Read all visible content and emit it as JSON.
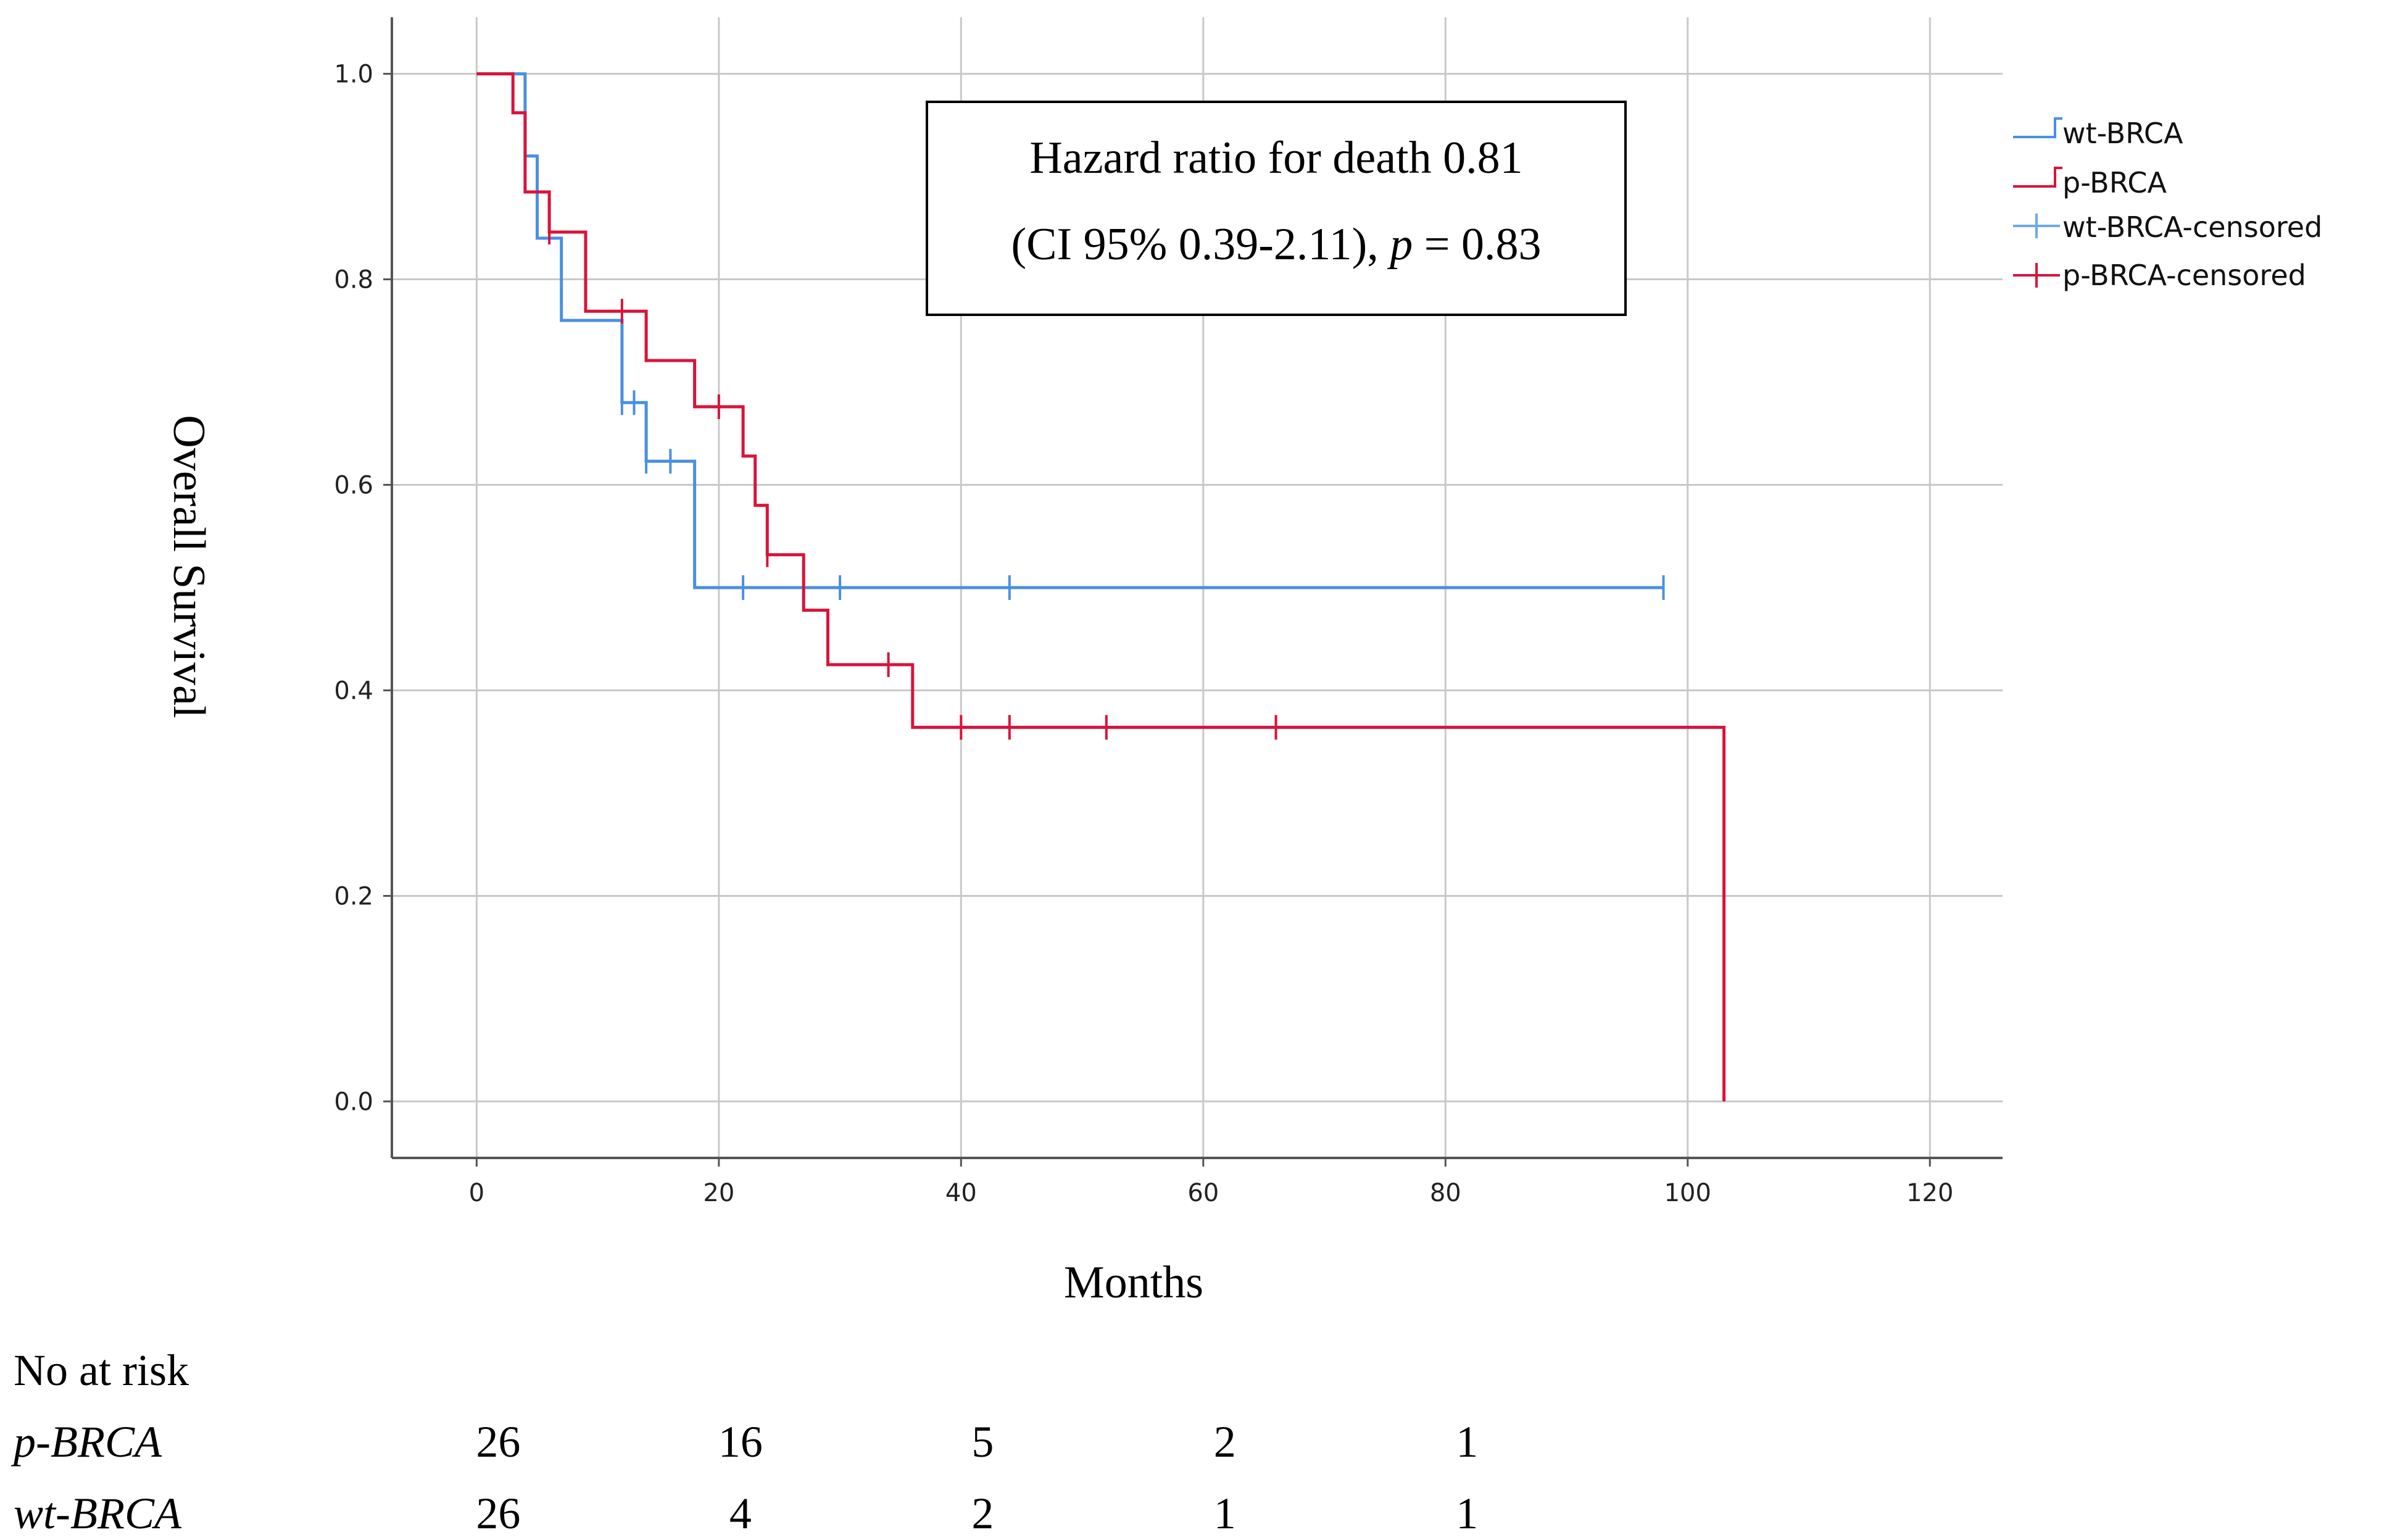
{
  "chart_data": {
    "type": "line",
    "subtype": "kaplan-meier",
    "xlabel": "Months",
    "ylabel": "Overall Survival",
    "xlim": [
      -7,
      126
    ],
    "ylim": [
      -0.055,
      1.055
    ],
    "x_ticks": [
      0,
      20,
      40,
      60,
      80,
      100,
      120
    ],
    "y_ticks": [
      0.0,
      0.2,
      0.4,
      0.6,
      0.8,
      1.0
    ],
    "x_tick_labels": [
      "0",
      "20",
      "40",
      "60",
      "80",
      "100",
      "120"
    ],
    "y_tick_labels": [
      "0.0",
      "0.2",
      "0.4",
      "0.6",
      "0.8",
      "1.0"
    ],
    "grid": true,
    "annotation": {
      "line1": "Hazard ratio for death 0.81",
      "line2_prefix": "(CI 95% 0.39-2.11), ",
      "line2_p": "p",
      "line2_suffix": " = 0.83"
    },
    "legend": {
      "position": "right",
      "entries": [
        "wt-BRCA",
        "p-BRCA",
        "wt-BRCA-censored",
        "p-BRCA-censored"
      ]
    },
    "series": [
      {
        "name": "wt-BRCA",
        "color": "#4a90e2",
        "steps": [
          [
            0,
            1.0
          ],
          [
            4,
            1.0
          ],
          [
            4,
            0.92
          ],
          [
            5,
            0.92
          ],
          [
            5,
            0.84
          ],
          [
            6,
            0.84
          ],
          [
            6,
            0.84
          ],
          [
            7,
            0.84
          ],
          [
            7,
            0.76
          ],
          [
            12,
            0.76
          ],
          [
            12,
            0.68
          ],
          [
            14,
            0.68
          ],
          [
            14,
            0.623
          ],
          [
            18,
            0.623
          ],
          [
            18,
            0.5
          ],
          [
            98,
            0.5
          ]
        ],
        "censored": [
          [
            12,
            0.68
          ],
          [
            13,
            0.68
          ],
          [
            14,
            0.623
          ],
          [
            16,
            0.623
          ],
          [
            22,
            0.5
          ],
          [
            30,
            0.5
          ],
          [
            44,
            0.5
          ],
          [
            98,
            0.5
          ]
        ]
      },
      {
        "name": "p-BRCA",
        "color": "#d9133a",
        "steps": [
          [
            0,
            1.0
          ],
          [
            3,
            1.0
          ],
          [
            3,
            0.962
          ],
          [
            4,
            0.962
          ],
          [
            4,
            0.885
          ],
          [
            6,
            0.885
          ],
          [
            6,
            0.846
          ],
          [
            9,
            0.846
          ],
          [
            9,
            0.808
          ],
          [
            9,
            0.808
          ],
          [
            9,
            0.769
          ],
          [
            14,
            0.769
          ],
          [
            14,
            0.721
          ],
          [
            18,
            0.721
          ],
          [
            18,
            0.676
          ],
          [
            22,
            0.676
          ],
          [
            22,
            0.628
          ],
          [
            23,
            0.628
          ],
          [
            23,
            0.58
          ],
          [
            24,
            0.58
          ],
          [
            24,
            0.532
          ],
          [
            27,
            0.532
          ],
          [
            27,
            0.478
          ],
          [
            29,
            0.478
          ],
          [
            29,
            0.425
          ],
          [
            36,
            0.425
          ],
          [
            36,
            0.364
          ],
          [
            103,
            0.364
          ],
          [
            103,
            0.0
          ]
        ],
        "censored": [
          [
            6,
            0.846
          ],
          [
            12,
            0.769
          ],
          [
            20,
            0.676
          ],
          [
            24,
            0.532
          ],
          [
            34,
            0.425
          ],
          [
            40,
            0.364
          ],
          [
            44,
            0.364
          ],
          [
            52,
            0.364
          ],
          [
            66,
            0.364
          ]
        ]
      }
    ],
    "risk_table": {
      "title": "No at risk",
      "times": [
        0,
        20,
        40,
        60,
        80
      ],
      "rows": [
        {
          "label": "p-BRCA",
          "values": [
            "26",
            "16",
            "5",
            "2",
            "1"
          ]
        },
        {
          "label": "wt-BRCA",
          "values": [
            "26",
            "4",
            "2",
            "1",
            "1"
          ]
        }
      ]
    }
  }
}
